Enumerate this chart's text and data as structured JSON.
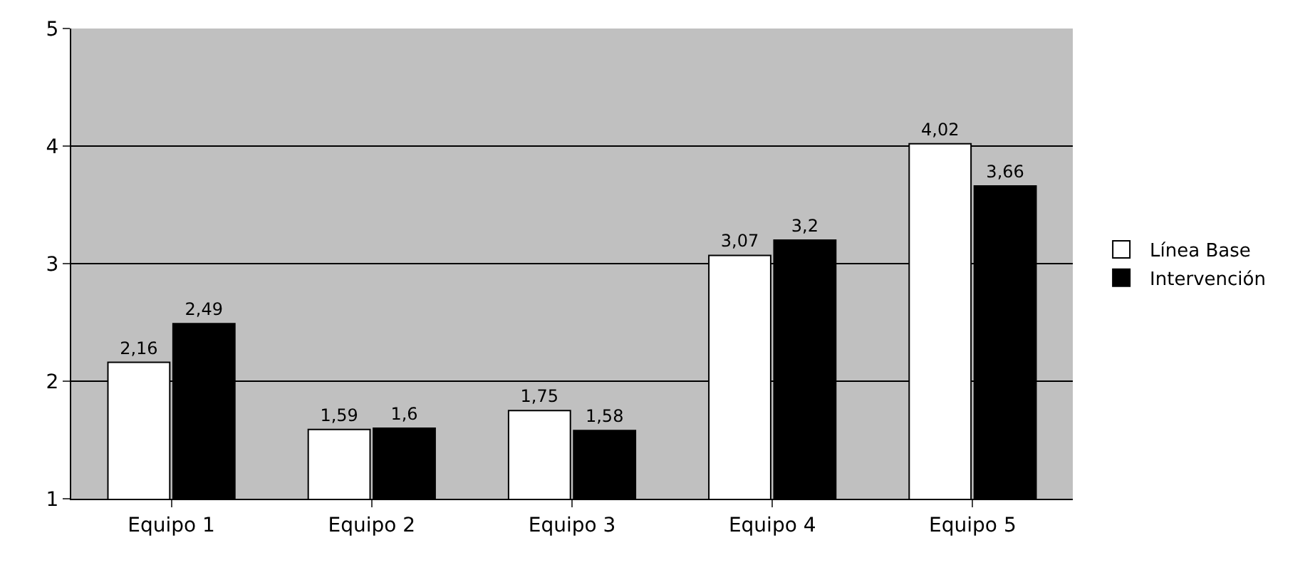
{
  "chart_data": {
    "type": "bar",
    "categories": [
      "Equipo 1",
      "Equipo 2",
      "Equipo 3",
      "Equipo 4",
      "Equipo 5"
    ],
    "series": [
      {
        "name": "Línea Base",
        "color": "#ffffff",
        "values": [
          2.16,
          1.59,
          1.75,
          3.07,
          4.02
        ],
        "value_labels": [
          "2,16",
          "1,59",
          "1,75",
          "3,07",
          "4,02"
        ]
      },
      {
        "name": "Intervención",
        "color": "#000000",
        "values": [
          2.49,
          1.6,
          1.58,
          3.2,
          3.66
        ],
        "value_labels": [
          "2,49",
          "1,6",
          "1,58",
          "3,2",
          "3,66"
        ]
      }
    ],
    "ylim": [
      1,
      5
    ],
    "yticks": [
      1,
      2,
      3,
      4,
      5
    ],
    "grid": "y",
    "legend": "right"
  }
}
